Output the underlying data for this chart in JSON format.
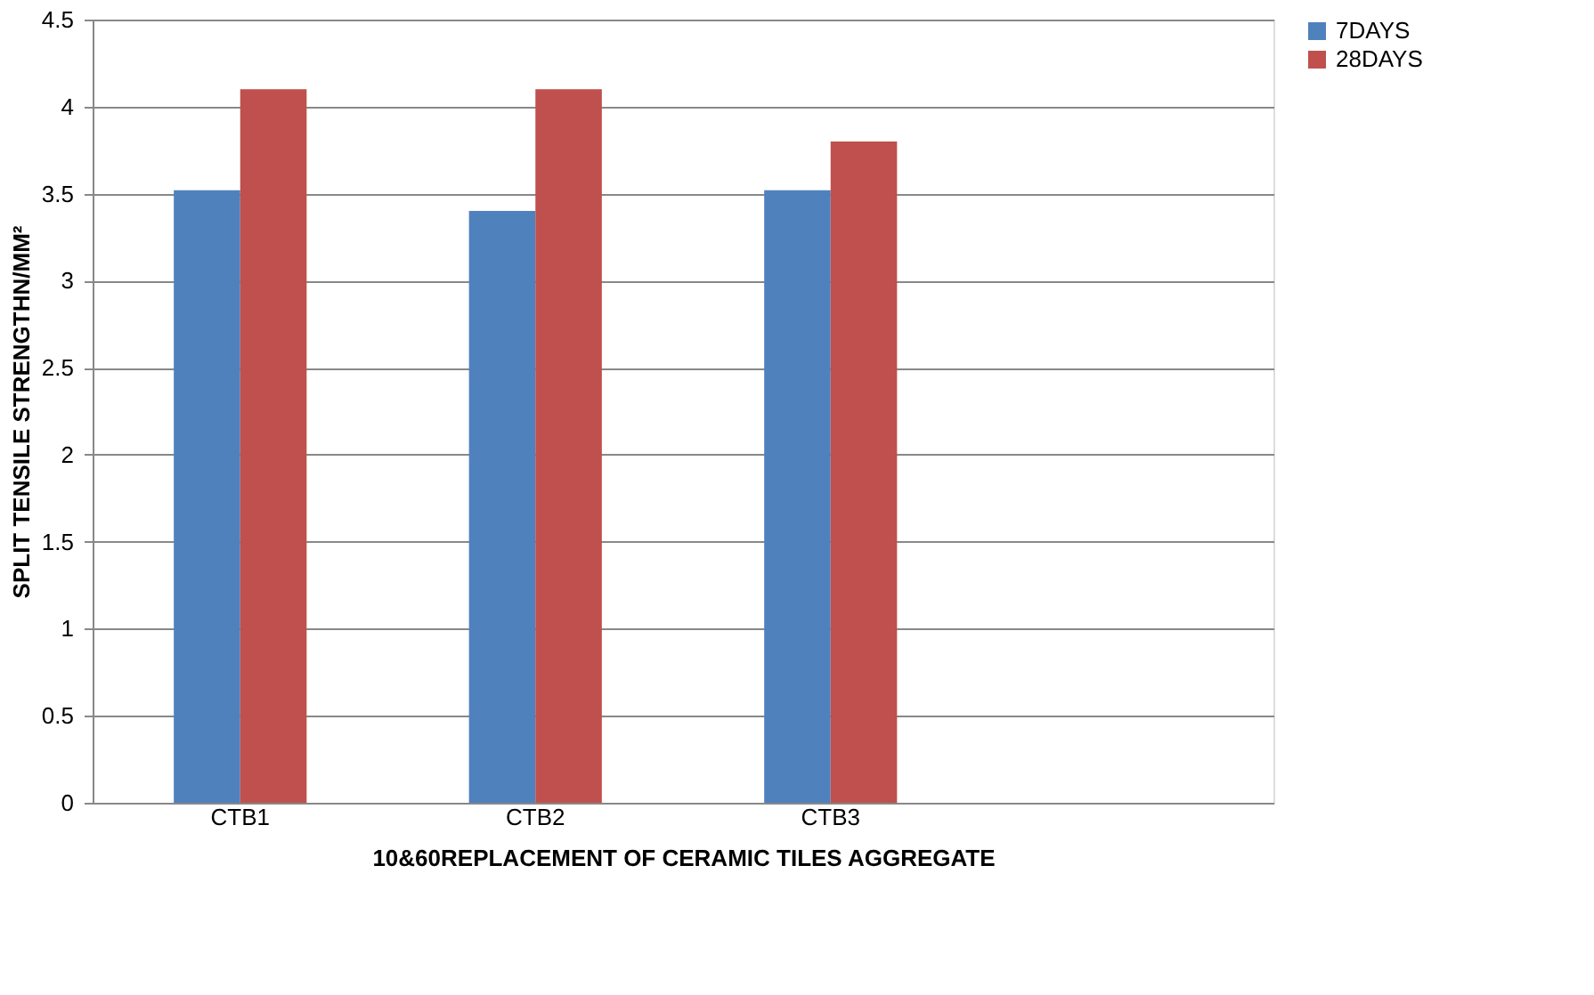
{
  "chart_data": {
    "type": "bar",
    "xlabel": "10&60REPLACEMENT OF CERAMIC TILES AGGREGATE",
    "ylabel": "SPLIT TENSILE STRENGTHN/MM²",
    "categories": [
      "CTB1",
      "CTB2",
      "CTB3",
      null
    ],
    "series": [
      {
        "name": "7DAYS",
        "color": "#4f81bd",
        "values": [
          3.52,
          3.4,
          3.52,
          null
        ]
      },
      {
        "name": "28DAYS",
        "color": "#c0504d",
        "values": [
          4.1,
          4.1,
          3.8,
          null
        ]
      }
    ],
    "ylim": [
      0,
      4.5
    ],
    "yticks": [
      0,
      0.5,
      1,
      1.5,
      2,
      2.5,
      3,
      3.5,
      4,
      4.5
    ],
    "grid": "y",
    "legend": "right"
  }
}
